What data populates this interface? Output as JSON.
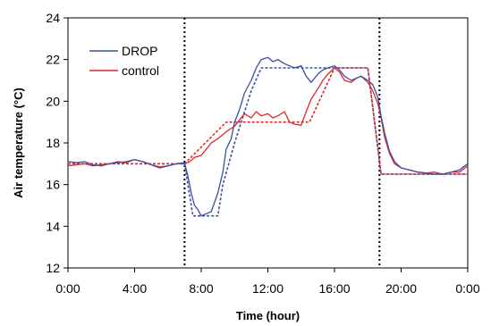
{
  "chart_data": {
    "type": "line",
    "xlabel": "Time (hour)",
    "ylabel": "Air temperature (°C)",
    "xlim": [
      0,
      24
    ],
    "ylim": [
      12,
      24
    ],
    "x_ticks": [
      {
        "value": 0,
        "label": "0:00"
      },
      {
        "value": 4,
        "label": "4:00"
      },
      {
        "value": 8,
        "label": "8:00"
      },
      {
        "value": 12,
        "label": "12:00"
      },
      {
        "value": 16,
        "label": "16:00"
      },
      {
        "value": 20,
        "label": "20:00"
      },
      {
        "value": 24,
        "label": "0:00"
      }
    ],
    "y_ticks": [
      12,
      14,
      16,
      18,
      20,
      22,
      24
    ],
    "grid": false,
    "legend_position": "top-left",
    "colors": {
      "drop": "#3b4fa0",
      "control": "#e0262b",
      "vlines": "#000000"
    },
    "vertical_lines": [
      7,
      18.7
    ],
    "series": [
      {
        "name": "DROP",
        "color": "#3b4fa0",
        "x": [
          0,
          0.5,
          1,
          1.5,
          2,
          2.5,
          3,
          3.5,
          4,
          4.5,
          5,
          5.5,
          6,
          6.5,
          7,
          7.2,
          7.4,
          7.6,
          7.8,
          8,
          8.3,
          8.6,
          9,
          9.3,
          9.5,
          9.8,
          10,
          10.3,
          10.6,
          11,
          11.3,
          11.6,
          12,
          12.3,
          12.6,
          13,
          13.3,
          13.6,
          14,
          14.3,
          14.6,
          15,
          15.3,
          15.6,
          16,
          16.3,
          16.6,
          17,
          17.3,
          17.6,
          18,
          18.3,
          18.6,
          18.8,
          19,
          19.3,
          19.6,
          20,
          20.5,
          21,
          21.5,
          22,
          22.5,
          23,
          23.5,
          24
        ],
        "y": [
          17.1,
          17.05,
          17.1,
          16.95,
          16.9,
          17.0,
          17.05,
          17.1,
          17.2,
          17.1,
          16.95,
          16.8,
          16.9,
          17.0,
          17.05,
          16.4,
          15.6,
          15.0,
          14.8,
          14.5,
          14.6,
          14.7,
          15.6,
          16.6,
          17.7,
          18.2,
          19.0,
          19.6,
          20.4,
          21.0,
          21.6,
          22.0,
          22.1,
          21.9,
          22.0,
          21.8,
          21.7,
          21.6,
          21.7,
          21.2,
          20.9,
          21.3,
          21.5,
          21.6,
          21.7,
          21.5,
          21.2,
          21.0,
          21.1,
          21.2,
          21.0,
          20.8,
          20.2,
          19.3,
          18.5,
          17.6,
          17.1,
          16.8,
          16.7,
          16.6,
          16.55,
          16.5,
          16.5,
          16.6,
          16.7,
          17.0
        ]
      },
      {
        "name": "control",
        "color": "#e0262b",
        "x": [
          0,
          0.5,
          1,
          1.5,
          2,
          2.5,
          3,
          3.5,
          4,
          4.5,
          5,
          5.5,
          6,
          6.5,
          7,
          7.3,
          7.6,
          8,
          8.3,
          8.6,
          9,
          9.3,
          9.6,
          10,
          10.3,
          10.6,
          11,
          11.3,
          11.6,
          12,
          12.3,
          12.6,
          13,
          13.3,
          13.6,
          14,
          14.3,
          14.6,
          15,
          15.3,
          15.6,
          16,
          16.3,
          16.6,
          17,
          17.3,
          17.6,
          18,
          18.3,
          18.6,
          18.8,
          19,
          19.3,
          19.6,
          20,
          20.5,
          21,
          21.5,
          22,
          22.5,
          23,
          23.5,
          24
        ],
        "y": [
          16.9,
          16.95,
          17.0,
          16.9,
          16.95,
          17.0,
          17.1,
          17.05,
          17.2,
          17.1,
          16.95,
          16.85,
          16.9,
          17.0,
          17.0,
          17.1,
          17.3,
          17.4,
          17.7,
          18.0,
          18.2,
          18.4,
          18.6,
          18.8,
          19.1,
          19.4,
          19.2,
          19.5,
          19.3,
          19.4,
          19.2,
          19.3,
          19.5,
          19.0,
          18.9,
          18.85,
          19.5,
          20.1,
          20.6,
          21.0,
          21.3,
          21.6,
          21.4,
          21.0,
          20.9,
          21.1,
          21.2,
          20.9,
          20.5,
          19.9,
          19.2,
          18.3,
          17.5,
          17.0,
          16.8,
          16.7,
          16.6,
          16.55,
          16.6,
          16.5,
          16.6,
          16.6,
          16.9
        ]
      },
      {
        "name": "",
        "color": "#3b4fa0",
        "dashed": true,
        "x": [
          0,
          7,
          7.5,
          9,
          9.3,
          10,
          11,
          11.6,
          12,
          18,
          18.8,
          24
        ],
        "y": [
          17.0,
          17.0,
          14.5,
          14.5,
          16.0,
          18.0,
          20.5,
          21.6,
          21.6,
          21.6,
          16.5,
          16.5
        ]
      },
      {
        "name": "",
        "color": "#e0262b",
        "dashed": true,
        "x": [
          0,
          7,
          9.5,
          14.5,
          16,
          18,
          18.8,
          24
        ],
        "y": [
          17.0,
          17.0,
          19.0,
          19.0,
          21.6,
          21.6,
          16.5,
          16.5
        ]
      }
    ]
  }
}
